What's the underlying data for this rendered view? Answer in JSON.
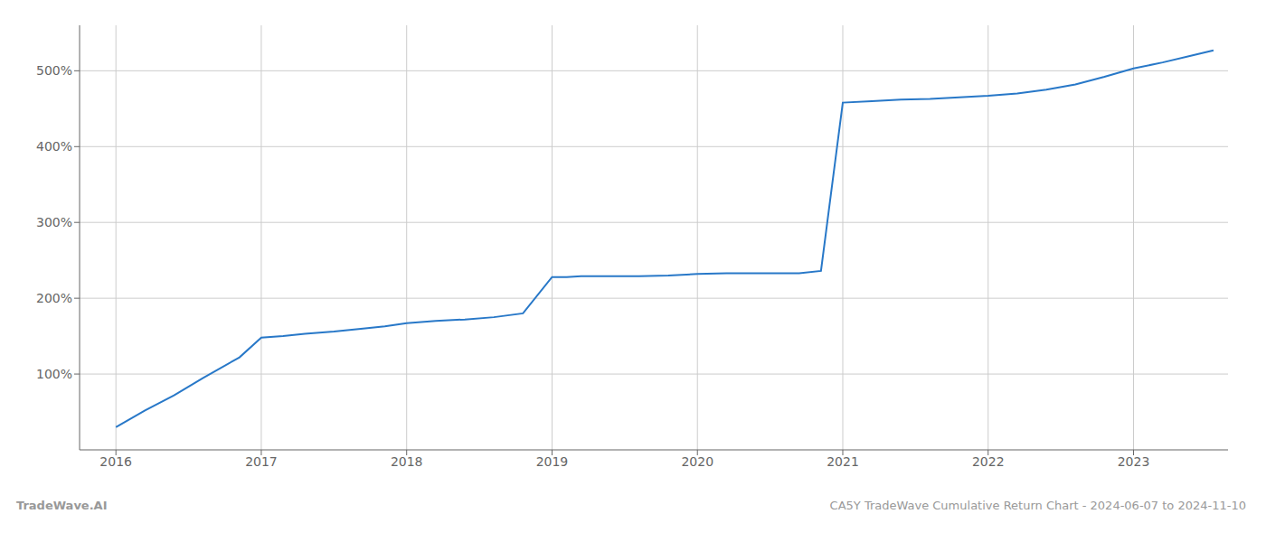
{
  "chart_data": {
    "type": "line",
    "x": [
      2016.0,
      2016.2,
      2016.4,
      2016.6,
      2016.85,
      2017.0,
      2017.15,
      2017.3,
      2017.5,
      2017.7,
      2017.85,
      2018.0,
      2018.2,
      2018.4,
      2018.6,
      2018.8,
      2019.0,
      2019.1,
      2019.2,
      2019.4,
      2019.6,
      2019.8,
      2020.0,
      2020.2,
      2020.5,
      2020.7,
      2020.85,
      2021.0,
      2021.2,
      2021.4,
      2021.6,
      2021.8,
      2022.0,
      2022.2,
      2022.4,
      2022.6,
      2022.8,
      2023.0,
      2023.2,
      2023.4,
      2023.55
    ],
    "values": [
      30,
      52,
      72,
      95,
      122,
      148,
      150,
      153,
      156,
      160,
      163,
      167,
      170,
      172,
      175,
      180,
      228,
      228,
      229,
      229,
      229,
      230,
      232,
      233,
      233,
      233,
      236,
      458,
      460,
      462,
      463,
      465,
      467,
      470,
      475,
      482,
      492,
      503,
      511,
      520,
      527
    ],
    "color": "#2878C8",
    "xlim": [
      2015.75,
      2023.65
    ],
    "xticks": [
      2016,
      2017,
      2018,
      2019,
      2020,
      2021,
      2022,
      2023
    ],
    "ylim": [
      0,
      560
    ],
    "yticks": [
      {
        "value": 100,
        "label": "100%"
      },
      {
        "value": 200,
        "label": "200%"
      },
      {
        "value": 300,
        "label": "300%"
      },
      {
        "value": 400,
        "label": "400%"
      },
      {
        "value": 500,
        "label": "500%"
      }
    ],
    "grid": true,
    "annotations": [
      "TradeWave.AI",
      "CA5Y TradeWave Cumulative Return Chart - 2024-06-07 to 2024-11-10"
    ]
  }
}
